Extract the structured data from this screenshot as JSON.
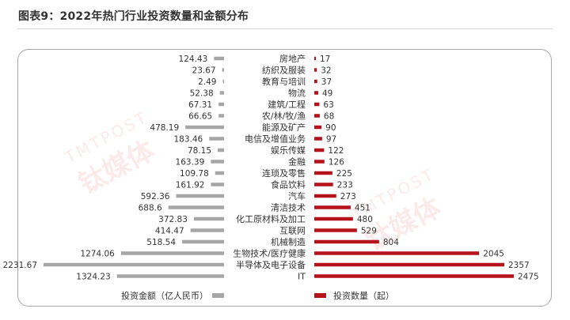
{
  "title": "图表9：2022年热门行业投资数量和金额分布",
  "watermark": {
    "latin": "TMTPOST",
    "cn": "钛媒体"
  },
  "colors": {
    "amount_bar": "#a6a6a6",
    "count_bar": "#b5121b",
    "text": "#333333"
  },
  "chart_data": {
    "type": "bar",
    "orientation": "horizontal-butterfly",
    "title": "图表9：2022年热门行业投资数量和金额分布",
    "categories": [
      "房地产",
      "纺织及服装",
      "教育与培训",
      "物流",
      "建筑/工程",
      "农/林/牧/渔",
      "能源及矿产",
      "电信及增值业务",
      "娱乐传媒",
      "金融",
      "连琐及零售",
      "食品饮料",
      "汽车",
      "清洁技术",
      "化工原材料及加工",
      "互联网",
      "机械制造",
      "生物技术/医疗健康",
      "半导体及电子设备",
      "IT"
    ],
    "series": [
      {
        "name": "投资金额（亿人民币）",
        "side": "left",
        "values": [
          124.43,
          23.67,
          2.49,
          52.38,
          67.31,
          66.65,
          478.19,
          183.46,
          78.15,
          163.39,
          109.78,
          161.92,
          592.36,
          688.6,
          372.83,
          414.47,
          518.54,
          1274.06,
          2231.67,
          1324.23
        ],
        "labels": [
          "124.43",
          "23.67",
          "2.49",
          "52.38",
          "67.31",
          "66.65",
          "478.19",
          "183.46",
          "78.15",
          "163.39",
          "109.78",
          "161.92",
          "592.36",
          "688.6",
          "372.83",
          "414.47",
          "518.54",
          "1274.06",
          "2231.67",
          "1324.23"
        ]
      },
      {
        "name": "投资数量（起）",
        "side": "right",
        "values": [
          17,
          32,
          37,
          49,
          63,
          68,
          90,
          97,
          122,
          126,
          225,
          233,
          273,
          451,
          480,
          529,
          804,
          2045,
          2357,
          2475
        ],
        "labels": [
          "17",
          "32",
          "37",
          "49",
          "63",
          "68",
          "90",
          "97",
          "122",
          "126",
          "225",
          "233",
          "273",
          "451",
          "480",
          "529",
          "804",
          "2045",
          "2357",
          "2475"
        ]
      }
    ],
    "legend_position": "bottom",
    "grid": false
  }
}
